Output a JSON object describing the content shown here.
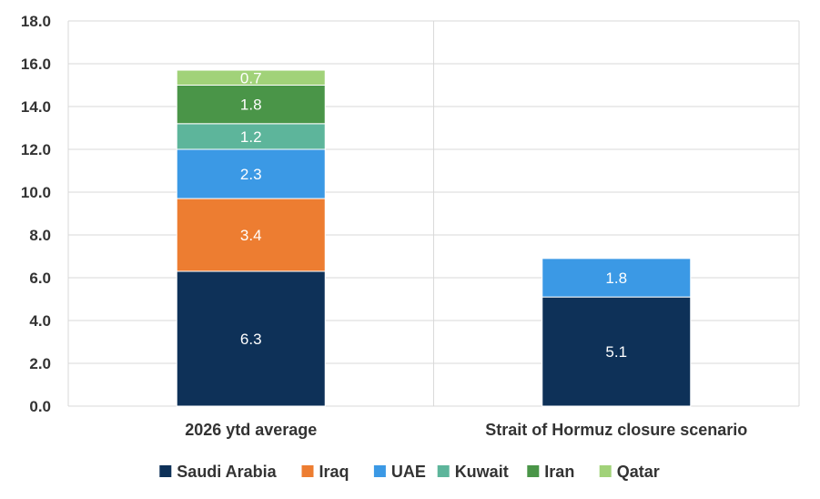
{
  "chart_data": {
    "type": "bar",
    "stacked": true,
    "categories": [
      "2026 ytd average",
      "Strait of Hormuz closure scenario"
    ],
    "series": [
      {
        "name": "Saudi Arabia",
        "color": "#0e3158",
        "values": [
          6.3,
          5.1
        ]
      },
      {
        "name": "Iraq",
        "color": "#ed7d31",
        "values": [
          3.4,
          0
        ]
      },
      {
        "name": "UAE",
        "color": "#3b99e5",
        "values": [
          2.3,
          1.8
        ]
      },
      {
        "name": "Kuwait",
        "color": "#5db59b",
        "values": [
          1.2,
          0
        ]
      },
      {
        "name": "Iran",
        "color": "#4a9548",
        "values": [
          1.8,
          0
        ]
      },
      {
        "name": "Qatar",
        "color": "#a1d279",
        "values": [
          0.7,
          0
        ]
      }
    ],
    "yticks": [
      "0.0",
      "2.0",
      "4.0",
      "6.0",
      "8.0",
      "10.0",
      "12.0",
      "14.0",
      "16.0",
      "18.0"
    ],
    "ylim": [
      0,
      18
    ],
    "grid": true,
    "legend_position": "bottom"
  }
}
